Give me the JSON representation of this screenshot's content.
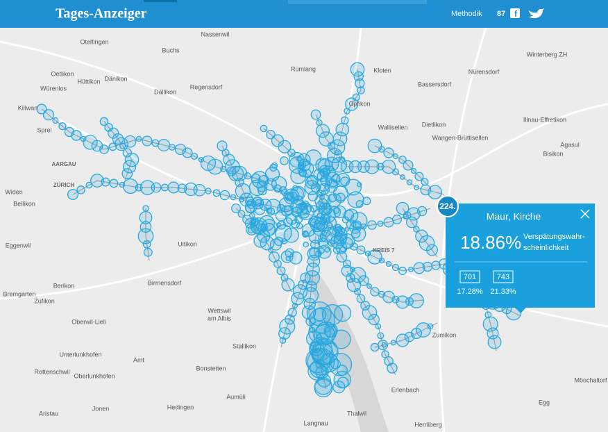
{
  "header": {
    "logo": "Tages-Anzeiger",
    "nav": "Methodik",
    "share_count": "87"
  },
  "map": {
    "places": [
      "Nassenwil",
      "Otelfingen",
      "Buchs",
      "Winterberg ZH",
      "Rümlang",
      "Kloten",
      "Nürensdorf",
      "Oetlikon",
      "Hüttikon",
      "Dänikon",
      "Regensdorf",
      "Bassersdorf",
      "Würenlos",
      "Dällikon",
      "Opfikon",
      "Killwan",
      "Dietlikon",
      "Illnau-Effretikon",
      "Wallisellen",
      "Wangen-Brüttisellen",
      "Bisikon",
      "Agasul",
      "AARGAU",
      "ZÜRICH",
      "Widen",
      "Bellikon",
      "Eggenwil",
      "Uitikon",
      "Birmensdorf",
      "Berikon",
      "Bremgarten",
      "Zufikon",
      "Oberwil-Lieli",
      "Wettswil",
      "am Albis",
      "Stallikon",
      "Unterlunkhofen",
      "Rottenschwil",
      "Oberlunkhofen",
      "Bonstetten",
      "Aumüli",
      "Hedingen",
      "Jonen",
      "Aristau",
      "Thalwil",
      "Langnau",
      "Herrliberg",
      "Erlenbach",
      "Egg",
      "Mönchaltorf",
      "Zumikon",
      "KREIS 7",
      "Amt",
      "Sprei"
    ]
  },
  "popup": {
    "rank": "224.",
    "title": "Maur, Kirche",
    "probability": "18.86%",
    "probability_label": [
      "Verspätungswahr-",
      "scheinlichkeit"
    ],
    "stats": [
      {
        "value": "701",
        "percent": "17.28%"
      },
      {
        "value": "743",
        "percent": "21.33%"
      }
    ]
  }
}
